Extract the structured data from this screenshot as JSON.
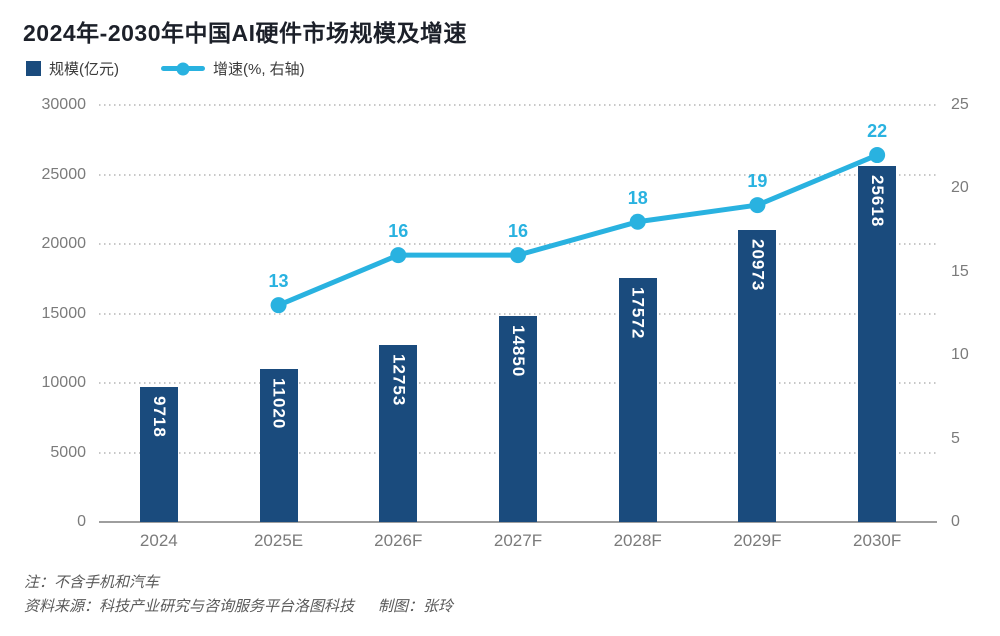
{
  "title": "2024年-2030年中国AI硬件市场规模及增速",
  "legend": {
    "bar_label": "规模(亿元)",
    "line_label": "增速(%, 右轴)"
  },
  "notes": {
    "note": "注：不含手机和汽车",
    "source": "资料来源：科技产业研究与咨询服务平台洛图科技",
    "credit": "制图：张玲"
  },
  "colors": {
    "bar": "#1a4b7d",
    "line": "#29b2e0",
    "title_text": "#1c2029",
    "axis_text": "#7b7b7b",
    "note_text": "#595959",
    "grid": "#c7c7c7",
    "axis_line": "#9e9e9e"
  },
  "chart_data": {
    "type": "bar",
    "subtype": "bar-with-line-overlay",
    "title": "2024年-2030年中国AI硬件市场规模及增速",
    "categories": [
      "2024",
      "2025E",
      "2026F",
      "2027F",
      "2028F",
      "2029F",
      "2030F"
    ],
    "series": [
      {
        "name": "规模(亿元)",
        "type": "bar",
        "axis": "left",
        "values": [
          9718,
          11020,
          12753,
          14850,
          17572,
          20973,
          25618
        ]
      },
      {
        "name": "增速(%, 右轴)",
        "type": "line",
        "axis": "right",
        "values": [
          null,
          13,
          16,
          16,
          18,
          19,
          22
        ]
      }
    ],
    "left_axis": {
      "label": "规模(亿元)",
      "min": 0,
      "max": 30000,
      "ticks": [
        0,
        5000,
        10000,
        15000,
        20000,
        25000,
        30000
      ]
    },
    "right_axis": {
      "label": "增速(%)",
      "min": 0,
      "max": 25,
      "ticks": [
        0,
        5,
        10,
        15,
        20,
        25
      ]
    },
    "grid": "horizontal-dotted",
    "legend_position": "top-left",
    "data_labels": "bars: white vertical inside top; line: colored above points"
  }
}
